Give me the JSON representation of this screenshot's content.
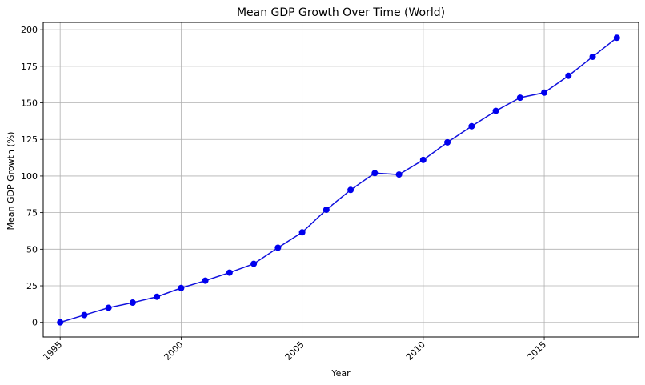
{
  "chart_data": {
    "type": "line",
    "title": "Mean GDP Growth Over Time (World)",
    "xlabel": "Year",
    "ylabel": "Mean GDP Growth (%)",
    "xlim": [
      1994.3,
      2018.9
    ],
    "ylim": [
      -10,
      205
    ],
    "xticks": [
      1995,
      2000,
      2005,
      2010,
      2015
    ],
    "yticks": [
      0,
      25,
      50,
      75,
      100,
      125,
      150,
      175,
      200
    ],
    "grid": true,
    "colors": {
      "line": "#1111dd",
      "marker": "#0000ee",
      "grid": "#b0b0b0"
    },
    "series": [
      {
        "x": [
          1995,
          1996,
          1997,
          1998,
          1999,
          2000,
          2001,
          2002,
          2003,
          2004,
          2005,
          2006,
          2007,
          2008,
          2009,
          2010,
          2011,
          2012,
          2013,
          2014,
          2015,
          2016,
          2017,
          2018
        ],
        "values": [
          0,
          5,
          10,
          13.5,
          17.5,
          23.5,
          28.5,
          34,
          40,
          51,
          61.5,
          77,
          90.5,
          102,
          101,
          111,
          123,
          134,
          144.5,
          153.5,
          157,
          168.5,
          181.5,
          194.5
        ]
      }
    ]
  }
}
